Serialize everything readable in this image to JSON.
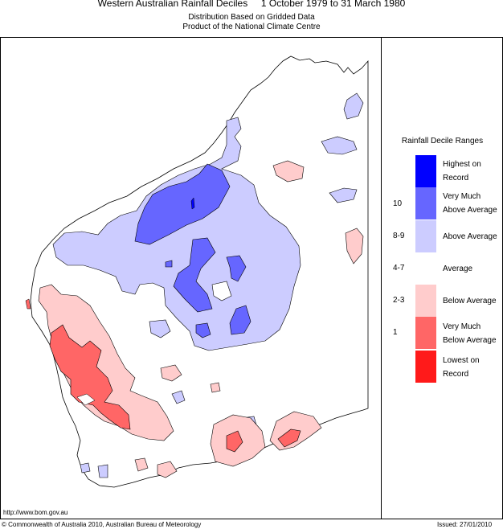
{
  "header": {
    "title": "Western Australian Rainfall Deciles     1 October 1979 to 31 March 1980",
    "subtitle1": "Distribution Based on Gridded Data",
    "subtitle2": "Product of the National Climate Centre"
  },
  "legend": {
    "title": "Rainfall Decile Ranges",
    "items": [
      {
        "label": "Highest on Record",
        "decile": "",
        "color": "#0000ff"
      },
      {
        "label": "Very Much Above Average",
        "decile": "10",
        "color": "#6666ff"
      },
      {
        "label": "Above Average",
        "decile": "8-9",
        "color": "#ccccff"
      },
      {
        "label": "Average",
        "decile": "4-7",
        "color": "#ffffff"
      },
      {
        "label": "Below Average",
        "decile": "2-3",
        "color": "#ffcccc"
      },
      {
        "label": "Very Much Below Average",
        "decile": "1",
        "color": "#ff6666"
      },
      {
        "label": "Lowest on Record",
        "decile": "",
        "color": "#ff1a1a"
      }
    ]
  },
  "footer": {
    "url": "http://www.bom.gov.au",
    "copyright": "© Commonwealth of Australia 2010, Australian Bureau of Meteorology",
    "issued": "Issued: 27/01/2010"
  },
  "colors": {
    "above": "#ccccff",
    "very_much_above": "#6666ff",
    "highest": "#0000ff",
    "below": "#ffcccc",
    "very_much_below": "#ff6666",
    "outline": "#000000"
  }
}
